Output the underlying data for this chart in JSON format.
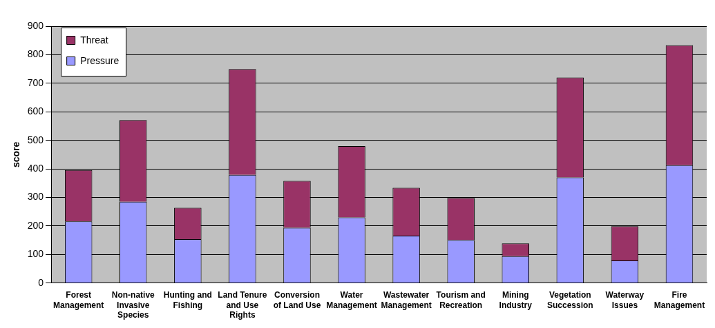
{
  "chart_data": {
    "type": "bar",
    "stacked": true,
    "ylabel": "score",
    "categories": [
      "Forest Management",
      "Non-native Invasive Species",
      "Hunting and Fishing",
      "Land Tenure and Use Rights",
      "Conversion of Land Use",
      "Water Management",
      "Wastewater Management",
      "Tourism and Recreation",
      "Mining Industry",
      "Vegetation Succession",
      "Waterway Issues",
      "Fire Management"
    ],
    "series": [
      {
        "name": "Pressure",
        "color": "#9999ff",
        "values": [
          216,
          285,
          154,
          379,
          194,
          230,
          166,
          151,
          94,
          370,
          79,
          413
        ]
      },
      {
        "name": "Threat",
        "color": "#993366",
        "values": [
          180,
          286,
          110,
          371,
          164,
          250,
          168,
          147,
          45,
          350,
          120,
          420
        ]
      }
    ],
    "ylim": [
      0,
      900
    ],
    "yticks": [
      0,
      100,
      200,
      300,
      400,
      500,
      600,
      700,
      800,
      900
    ],
    "grid": "y",
    "legend": "top left"
  }
}
